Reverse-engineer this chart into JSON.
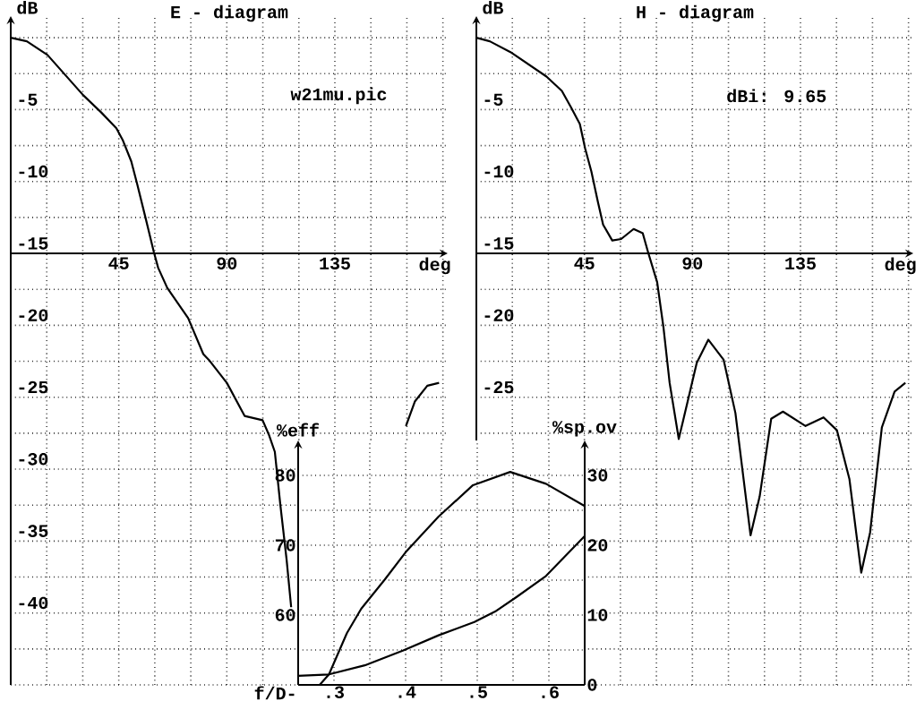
{
  "chart_data": [
    {
      "type": "line",
      "title": "E - diagram",
      "xlabel": "deg",
      "ylabel": "dB",
      "annotations": [
        "w21mu.pic"
      ],
      "x": [
        0,
        6.7,
        15.3,
        30.2,
        37.7,
        44.0,
        46.6,
        50.2,
        52.7,
        56.4,
        59.6,
        61.4,
        65.2,
        73.9,
        80.2,
        82.5,
        90.0,
        97.4,
        104.9,
        107.5,
        110.0,
        112.3,
        114.9,
        116.8,
        140,
        164.6,
        168.3,
        173.5,
        178.4
      ],
      "values": [
        0,
        -0.25,
        -1.2,
        -4.0,
        -5.2,
        -6.3,
        -7.1,
        -8.6,
        -10.2,
        -12.7,
        -14.9,
        -16.0,
        -17.4,
        -19.5,
        -22.0,
        -22.4,
        -24.0,
        -26.3,
        -26.6,
        -27.6,
        -28.8,
        -32.5,
        -36.3,
        -39.6,
        null,
        -27.0,
        -25.3,
        -24.2,
        -24.0
      ],
      "color": "#000000",
      "marker": "none",
      "line_style": "solid",
      "xlim": [
        0,
        182
      ],
      "ylim": [
        -45,
        1.5
      ],
      "xticks": [
        {
          "value": 15,
          "label": null
        },
        {
          "value": 30,
          "label": null
        },
        45,
        {
          "value": 60,
          "label": null
        },
        {
          "value": 75,
          "label": null
        },
        90,
        {
          "value": 105,
          "label": null
        },
        {
          "value": 120,
          "label": null
        },
        135,
        {
          "value": 150,
          "label": null
        },
        {
          "value": 165,
          "label": null
        },
        {
          "value": 180,
          "label": null
        }
      ],
      "yticks": [
        {
          "value": 0,
          "label": null
        },
        {
          "value": -2.5,
          "label": null
        },
        -5,
        {
          "value": -7.5,
          "label": null
        },
        -10,
        {
          "value": -12.5,
          "label": null
        },
        -15,
        {
          "value": -17.5,
          "label": null
        },
        -20,
        {
          "value": -22.5,
          "label": null
        },
        -25,
        {
          "value": -27.5,
          "label": null
        },
        -30,
        {
          "value": -32.5,
          "label": null
        },
        -35,
        {
          "value": -37.5,
          "label": null
        },
        -40,
        {
          "value": -42.5,
          "label": null
        },
        {
          "value": -45,
          "label": null
        }
      ],
      "grid": true
    },
    {
      "type": "line",
      "title": "H - diagram",
      "xlabel": "deg",
      "ylabel": "dB",
      "annotations": [
        "dBi: 9.65"
      ],
      "x": [
        0,
        5.6,
        14.2,
        29.2,
        35.6,
        39.3,
        43.1,
        45.3,
        47.9,
        50.6,
        52.8,
        56.6,
        60.3,
        65.5,
        69.3,
        71.5,
        75.3,
        77.9,
        80.5,
        84.3,
        88.0,
        91.8,
        96.6,
        103.0,
        107.9,
        114.2,
        118.0,
        122.8,
        127.7,
        137.1,
        144.6,
        150.2,
        155.4,
        160.3,
        164.0,
        168.9,
        174.2,
        178.7
      ],
      "values": [
        0,
        -0.25,
        -1.0,
        -2.7,
        -3.7,
        -4.8,
        -6.0,
        -7.7,
        -9.3,
        -11.4,
        -13.0,
        -14.1,
        -14.0,
        -13.3,
        -13.6,
        -14.9,
        -17.0,
        -20.1,
        -24.0,
        -27.9,
        -25.3,
        -22.6,
        -21.0,
        -22.4,
        -26.1,
        -34.6,
        -31.9,
        -26.5,
        -26.0,
        -27.0,
        -26.4,
        -27.3,
        -30.7,
        -37.2,
        -34.4,
        -27.1,
        -24.6,
        -24.0
      ],
      "color": "#000000",
      "marker": "none",
      "line_style": "solid",
      "xlim": [
        0,
        182
      ],
      "ylim": [
        -45,
        1.5
      ],
      "xticks": [
        {
          "value": 15,
          "label": null
        },
        {
          "value": 30,
          "label": null
        },
        45,
        {
          "value": 60,
          "label": null
        },
        {
          "value": 75,
          "label": null
        },
        90,
        {
          "value": 105,
          "label": null
        },
        {
          "value": 120,
          "label": null
        },
        135,
        {
          "value": 150,
          "label": null
        },
        {
          "value": 165,
          "label": null
        },
        {
          "value": 180,
          "label": null
        }
      ],
      "yticks": [
        {
          "value": 0,
          "label": null
        },
        {
          "value": -2.5,
          "label": null
        },
        -5,
        {
          "value": -7.5,
          "label": null
        },
        -10,
        {
          "value": -12.5,
          "label": null
        },
        -15,
        {
          "value": -17.5,
          "label": null
        },
        -20,
        {
          "value": -22.5,
          "label": null
        },
        -25,
        {
          "value": -27.5,
          "label": null
        },
        {
          "value": -30,
          "label": null
        },
        {
          "value": -32.5,
          "label": null
        },
        {
          "value": -35,
          "label": null
        },
        {
          "value": -37.5,
          "label": null
        },
        {
          "value": -40,
          "label": null
        },
        {
          "value": -42.5,
          "label": null
        },
        {
          "value": -45,
          "label": null
        }
      ],
      "grid": true
    },
    {
      "type": "line",
      "xlabel": "f/D-",
      "ylabel": "%eff",
      "y2label": "%sp.ov",
      "marker": "none",
      "line_style": "solid",
      "series": [
        {
          "color": "#000000",
          "x": [
            0.28,
            0.293,
            0.318,
            0.338,
            0.371,
            0.4,
            0.446,
            0.494,
            0.546,
            0.596,
            0.65
          ],
          "values": [
            50.0,
            51.5,
            57.4,
            60.9,
            65.1,
            69.0,
            74.1,
            78.6,
            80.5,
            78.8,
            75.6
          ]
        },
        {
          "color": "#000000",
          "axis": "y2",
          "x": [
            0.25,
            0.293,
            0.343,
            0.396,
            0.446,
            0.496,
            0.525,
            0.555,
            0.596,
            0.65
          ],
          "values": [
            1.3,
            1.5,
            2.8,
            4.9,
            7.1,
            9.0,
            10.5,
            12.6,
            15.6,
            21.3
          ]
        }
      ],
      "xlim": [
        0.25,
        0.65
      ],
      "ylim": [
        50,
        85
      ],
      "y2lim": [
        0,
        35
      ],
      "xticks": [
        {
          "value": 0.3,
          "label": ".3"
        },
        {
          "value": 0.35,
          "label": null
        },
        {
          "value": 0.4,
          "label": ".4"
        },
        {
          "value": 0.45,
          "label": null
        },
        {
          "value": 0.5,
          "label": ".5"
        },
        {
          "value": 0.55,
          "label": null
        },
        {
          "value": 0.6,
          "label": ".6"
        }
      ],
      "yticks": [
        {
          "value": 55,
          "label": null
        },
        60,
        {
          "value": 65,
          "label": null
        },
        70,
        {
          "value": 75,
          "label": null
        },
        80
      ],
      "y2ticks": [
        0,
        10,
        20,
        30
      ],
      "grid": true
    }
  ]
}
